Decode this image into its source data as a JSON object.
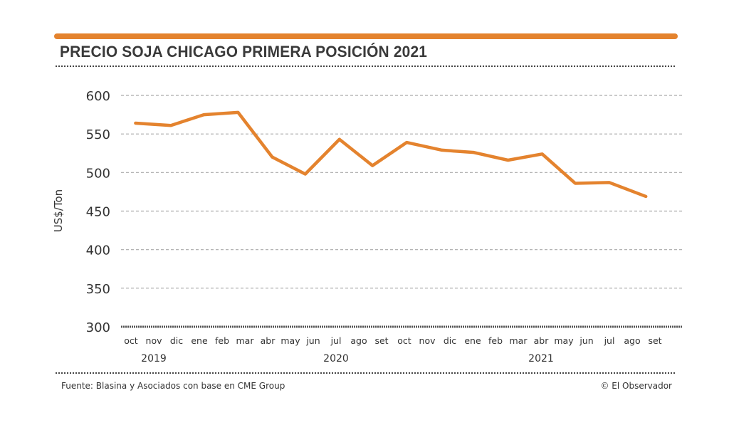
{
  "header": {
    "title": "PRECIO SOJA CHICAGO PRIMERA POSICIÓN 2021"
  },
  "footer": {
    "source": "Fuente: Blasina y Asociados con base en CME Group",
    "credit": "© El Observador"
  },
  "colors": {
    "accent": "#e4832e",
    "grid": "#aaaaaa",
    "text": "#333333"
  },
  "chart_data": {
    "type": "line",
    "title": "PRECIO SOJA CHICAGO PRIMERA POSICIÓN 2021",
    "xlabel": "",
    "ylabel": "US$/Ton",
    "ylim": [
      300,
      600
    ],
    "yticks": [
      300,
      350,
      400,
      450,
      500,
      550,
      600
    ],
    "grid": true,
    "month_labels": [
      "oct",
      "nov",
      "dic",
      "ene",
      "feb",
      "mar",
      "abr",
      "may",
      "jun",
      "jul",
      "ago",
      "set",
      "oct",
      "nov",
      "dic",
      "ene",
      "feb",
      "mar",
      "abr",
      "may",
      "jun",
      "jul",
      "ago",
      "set"
    ],
    "year_labels": [
      {
        "label": "2019",
        "month_index": 1
      },
      {
        "label": "2020",
        "month_index": 9
      },
      {
        "label": "2021",
        "month_index": 18
      }
    ],
    "series": [
      {
        "name": "Precio soja",
        "color": "#e4832e",
        "month_positions": [
          0.2,
          1.75,
          3.2,
          4.7,
          6.2,
          7.65,
          9.15,
          10.6,
          12.1,
          13.65,
          15.05,
          16.55,
          18.05,
          19.5,
          21.0,
          22.6
        ],
        "values": [
          564,
          561,
          575,
          578,
          520,
          498,
          543,
          509,
          539,
          529,
          526,
          516,
          524,
          486,
          487,
          469
        ]
      }
    ]
  }
}
